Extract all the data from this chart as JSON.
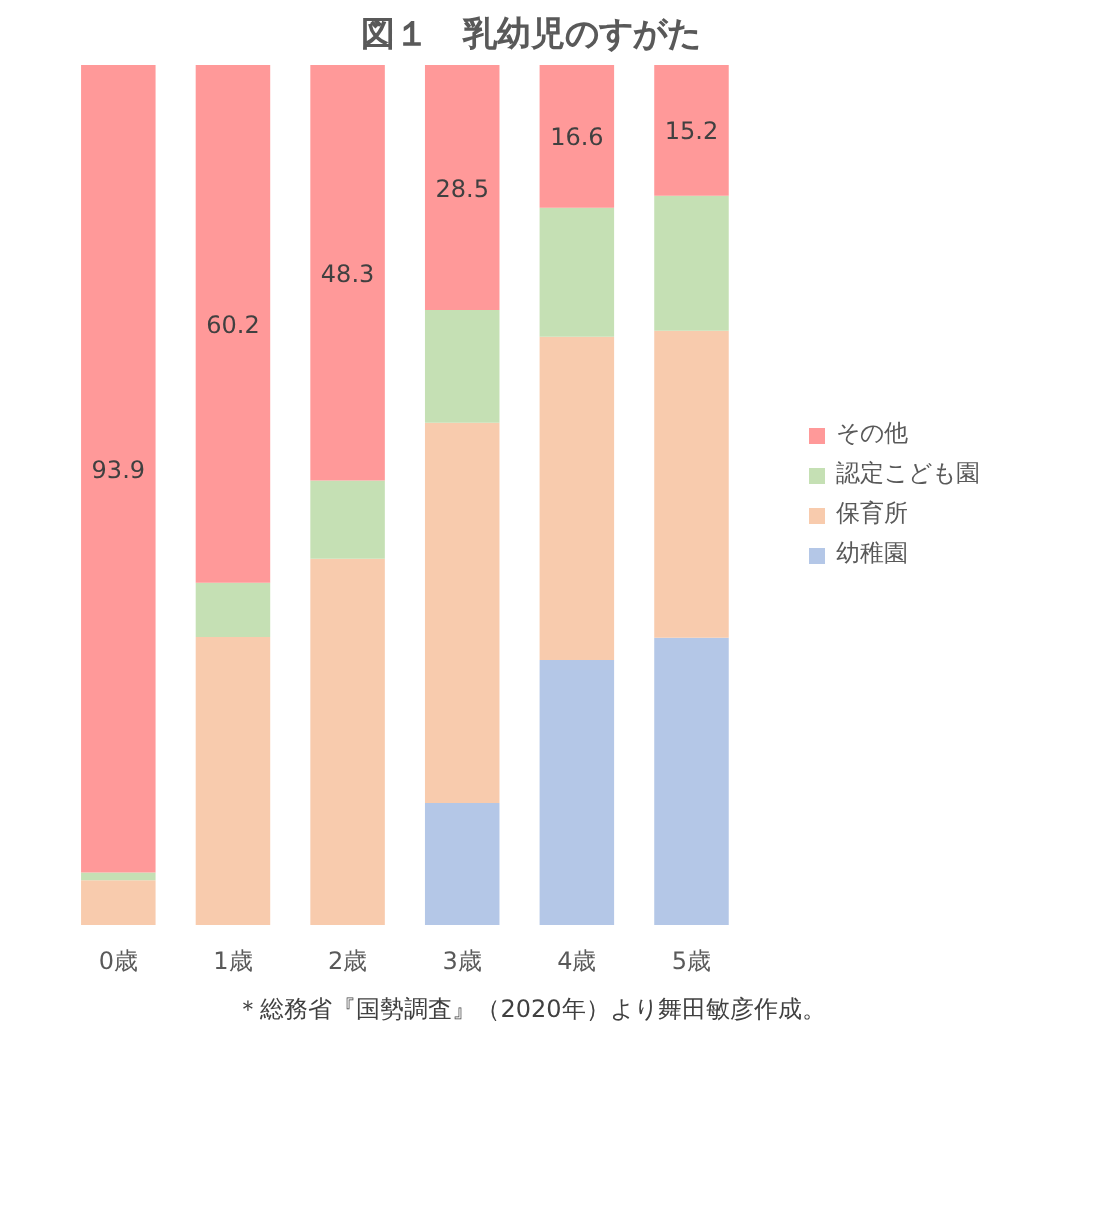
{
  "chart_data": {
    "type": "bar",
    "title": "図１　乳幼児のすがた",
    "stacked": true,
    "categories": [
      "0歳",
      "1歳",
      "2歳",
      "3歳",
      "4歳",
      "5歳"
    ],
    "series": [
      {
        "name": "幼稚園",
        "color": "#b4c7e7",
        "values": [
          0,
          0,
          0,
          14.2,
          30.8,
          33.4
        ]
      },
      {
        "name": "保育所",
        "color": "#f8cbad",
        "values": [
          5.2,
          33.5,
          42.6,
          44.2,
          37.6,
          35.7
        ]
      },
      {
        "name": "認定こども園",
        "color": "#c5e0b4",
        "values": [
          0.9,
          6.3,
          9.1,
          13.1,
          15.0,
          15.7
        ]
      },
      {
        "name": "その他",
        "color": "#ff9999",
        "values": [
          93.9,
          60.2,
          48.3,
          28.5,
          16.6,
          15.2
        ],
        "value_labels": [
          "93.9",
          "60.2",
          "48.3",
          "28.5",
          "16.6",
          "15.2"
        ]
      }
    ],
    "ylim": [
      0,
      100
    ],
    "tick_labels": "x",
    "grid": false,
    "legend": "right",
    "annotations": [
      "＊総務省『国勢調査』（2020年）より舞田敏彦作成。"
    ]
  }
}
